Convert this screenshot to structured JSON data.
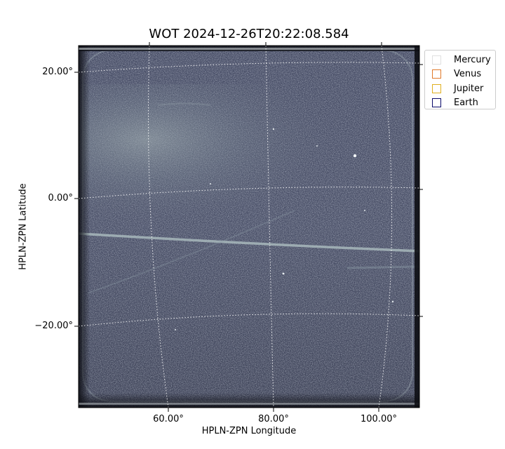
{
  "figure": {
    "title": "WOT 2024-12-26T20:22:08.584",
    "xlabel": "HPLN-ZPN Longitude",
    "ylabel": "HPLN-ZPN Latitude",
    "x_ticks": [
      "60.00°",
      "80.00°",
      "100.00°"
    ],
    "y_ticks": [
      "20.00°",
      "0.00°",
      "−20.00°"
    ],
    "colormap": "bone",
    "grid": "dotted white coordinate grid overlay"
  },
  "legend": {
    "placement": "outside upper right",
    "items": [
      {
        "label": "Mercury",
        "color": "#e0e0e0"
      },
      {
        "label": "Venus",
        "color": "#e07a2a"
      },
      {
        "label": "Jupiter",
        "color": "#e0b020"
      },
      {
        "label": "Earth",
        "color": "#0a0a6a"
      }
    ]
  }
}
